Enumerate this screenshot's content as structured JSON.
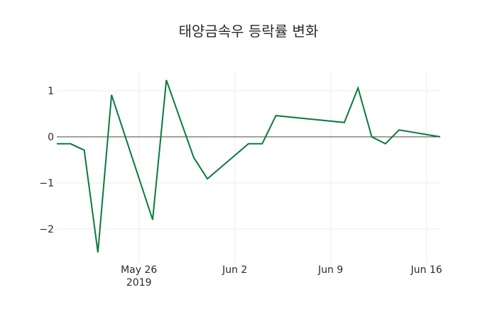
{
  "chart_data": {
    "type": "line",
    "title": "태양금속우 등락률 변화",
    "xlabel": "",
    "ylabel": "",
    "x": [
      "2019-05-20",
      "2019-05-21",
      "2019-05-22",
      "2019-05-23",
      "2019-05-24",
      "2019-05-27",
      "2019-05-28",
      "2019-05-29",
      "2019-05-30",
      "2019-05-31",
      "2019-06-03",
      "2019-06-04",
      "2019-06-05",
      "2019-06-07",
      "2019-06-10",
      "2019-06-11",
      "2019-06-12",
      "2019-06-13",
      "2019-06-14",
      "2019-06-17"
    ],
    "series": [
      {
        "name": "등락률",
        "color": "#0a7a3c",
        "values": [
          -0.15,
          -0.15,
          -0.29,
          -2.51,
          0.91,
          -1.8,
          1.23,
          0.39,
          -0.45,
          -0.91,
          -0.15,
          -0.15,
          0.46,
          0.4,
          0.31,
          1.06,
          0.0,
          -0.15,
          0.15,
          0.0
        ]
      }
    ],
    "ylim": [
      -2.65,
      1.42
    ],
    "xlim": [
      "2019-05-20",
      "2019-06-17"
    ],
    "y_ticks": [
      1,
      0,
      -1,
      -2
    ],
    "y_tick_labels": [
      "1",
      "0",
      "−1",
      "−2"
    ],
    "x_ticks": [
      "2019-05-26",
      "2019-06-02",
      "2019-06-09",
      "2019-06-16"
    ],
    "x_tick_labels": [
      "May 26",
      "Jun 2",
      "Jun 9",
      "Jun 16"
    ],
    "x_tick_sublabel": "2019",
    "grid": true,
    "zero_line": true,
    "legend": false
  }
}
